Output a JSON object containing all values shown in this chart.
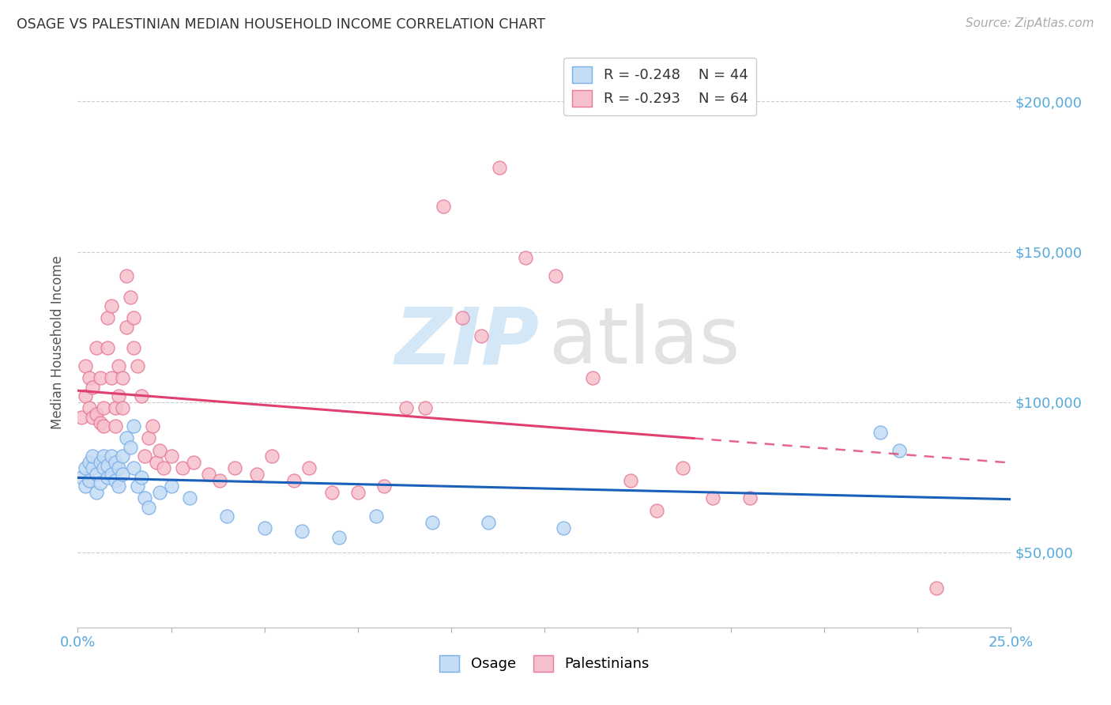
{
  "title": "OSAGE VS PALESTINIAN MEDIAN HOUSEHOLD INCOME CORRELATION CHART",
  "source": "Source: ZipAtlas.com",
  "ylabel": "Median Household Income",
  "xlim": [
    0.0,
    0.25
  ],
  "ylim": [
    25000,
    215000
  ],
  "yticks": [
    50000,
    100000,
    150000,
    200000
  ],
  "ytick_labels": [
    "$50,000",
    "$100,000",
    "$150,000",
    "$200,000"
  ],
  "xticks": [
    0.0,
    0.025,
    0.05,
    0.075,
    0.1,
    0.125,
    0.15,
    0.175,
    0.2,
    0.225,
    0.25
  ],
  "legend_r_osage": "-0.248",
  "legend_n_osage": "44",
  "legend_r_pal": "-0.293",
  "legend_n_pal": "64",
  "osage_face": "#c5dcf5",
  "osage_edge": "#7aaee8",
  "pal_face": "#f5c0cc",
  "pal_edge": "#e87898",
  "line_osage_color": "#1a5fba",
  "line_pal_color": "#e04070",
  "grid_color": "#cccccc",
  "background": "#ffffff",
  "title_color": "#333333",
  "source_color": "#aaaaaa",
  "axis_label_color": "#555555",
  "tick_color": "#55aadd",
  "pal_dash_split": 0.165,
  "osage_x": [
    0.001,
    0.002,
    0.002,
    0.003,
    0.003,
    0.004,
    0.004,
    0.005,
    0.005,
    0.006,
    0.006,
    0.007,
    0.007,
    0.008,
    0.008,
    0.009,
    0.009,
    0.01,
    0.01,
    0.011,
    0.011,
    0.012,
    0.012,
    0.013,
    0.014,
    0.015,
    0.015,
    0.016,
    0.017,
    0.018,
    0.019,
    0.022,
    0.025,
    0.03,
    0.04,
    0.05,
    0.06,
    0.07,
    0.08,
    0.095,
    0.11,
    0.13,
    0.215,
    0.22
  ],
  "osage_y": [
    75000,
    72000,
    78000,
    80000,
    74000,
    78000,
    82000,
    70000,
    76000,
    80000,
    73000,
    78000,
    82000,
    75000,
    79000,
    82000,
    76000,
    80000,
    74000,
    78000,
    72000,
    76000,
    82000,
    88000,
    85000,
    92000,
    78000,
    72000,
    75000,
    68000,
    65000,
    70000,
    72000,
    68000,
    62000,
    58000,
    57000,
    55000,
    62000,
    60000,
    60000,
    58000,
    90000,
    84000
  ],
  "pal_x": [
    0.001,
    0.002,
    0.002,
    0.003,
    0.003,
    0.004,
    0.004,
    0.005,
    0.005,
    0.006,
    0.006,
    0.007,
    0.007,
    0.008,
    0.008,
    0.009,
    0.009,
    0.01,
    0.01,
    0.011,
    0.011,
    0.012,
    0.012,
    0.013,
    0.013,
    0.014,
    0.015,
    0.015,
    0.016,
    0.017,
    0.018,
    0.019,
    0.02,
    0.021,
    0.022,
    0.023,
    0.025,
    0.028,
    0.031,
    0.035,
    0.038,
    0.042,
    0.048,
    0.052,
    0.058,
    0.062,
    0.068,
    0.075,
    0.082,
    0.088,
    0.093,
    0.098,
    0.103,
    0.108,
    0.113,
    0.12,
    0.128,
    0.138,
    0.148,
    0.155,
    0.162,
    0.17,
    0.18,
    0.23
  ],
  "pal_y": [
    95000,
    112000,
    102000,
    108000,
    98000,
    95000,
    105000,
    118000,
    96000,
    93000,
    108000,
    98000,
    92000,
    128000,
    118000,
    132000,
    108000,
    98000,
    92000,
    112000,
    102000,
    108000,
    98000,
    142000,
    125000,
    135000,
    118000,
    128000,
    112000,
    102000,
    82000,
    88000,
    92000,
    80000,
    84000,
    78000,
    82000,
    78000,
    80000,
    76000,
    74000,
    78000,
    76000,
    82000,
    74000,
    78000,
    70000,
    70000,
    72000,
    98000,
    98000,
    165000,
    128000,
    122000,
    178000,
    148000,
    142000,
    108000,
    74000,
    64000,
    78000,
    68000,
    68000,
    38000
  ]
}
